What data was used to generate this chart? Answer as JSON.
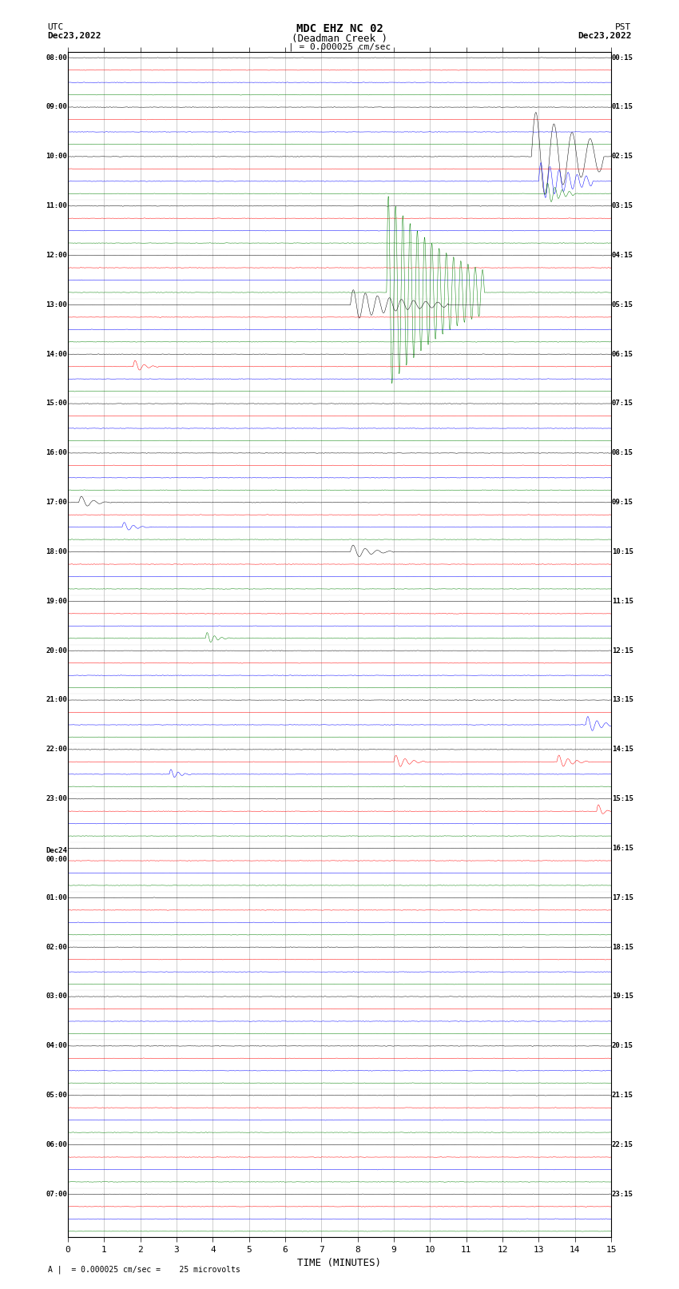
{
  "title_line1": "MDC EHZ NC 02",
  "title_line2": "(Deadman Creek )",
  "title_line3": "| = 0.000025 cm/sec",
  "label_left_top": "UTC",
  "label_left_date": "Dec23,2022",
  "label_right_top": "PST",
  "label_right_date": "Dec23,2022",
  "xlabel": "TIME (MINUTES)",
  "scale_text": "= 0.000025 cm/sec =    25 microvolts",
  "background_color": "#ffffff",
  "trace_colors": [
    "black",
    "red",
    "blue",
    "green"
  ],
  "utc_times": [
    "08:00",
    "09:00",
    "10:00",
    "11:00",
    "12:00",
    "13:00",
    "14:00",
    "15:00",
    "16:00",
    "17:00",
    "18:00",
    "19:00",
    "20:00",
    "21:00",
    "22:00",
    "23:00",
    "Dec24\n00:00",
    "01:00",
    "02:00",
    "03:00",
    "04:00",
    "05:00",
    "06:00",
    "07:00"
  ],
  "pst_times": [
    "00:15",
    "01:15",
    "02:15",
    "03:15",
    "04:15",
    "05:15",
    "06:15",
    "07:15",
    "08:15",
    "09:15",
    "10:15",
    "11:15",
    "12:15",
    "13:15",
    "14:15",
    "15:15",
    "16:15",
    "17:15",
    "18:15",
    "19:15",
    "20:15",
    "21:15",
    "22:15",
    "23:15"
  ],
  "n_rows": 24,
  "n_minutes": 15,
  "fig_width": 8.5,
  "fig_height": 16.13
}
